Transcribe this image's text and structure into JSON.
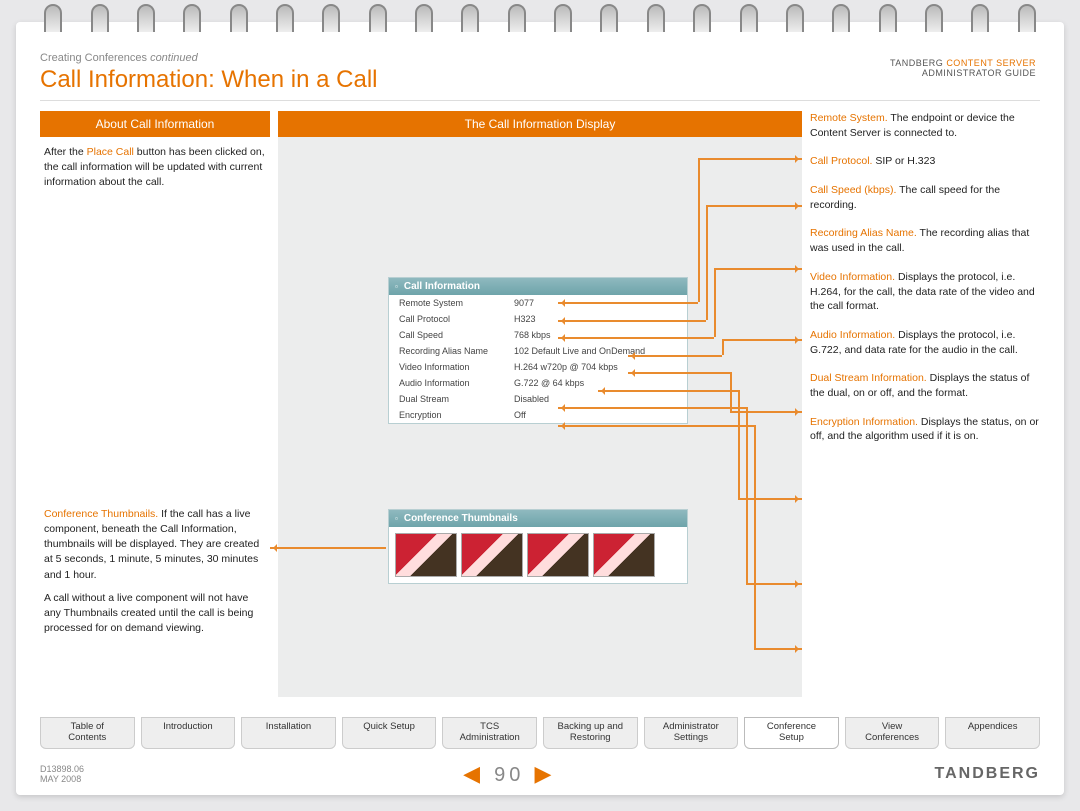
{
  "breadcrumb_prefix": "Creating Conferences ",
  "breadcrumb_suffix": "continued",
  "page_title": "Call Information: When in a Call",
  "brand_line1_a": "TANDBERG ",
  "brand_line1_b": "CONTENT SERVER",
  "brand_line2": "ADMINISTRATOR GUIDE",
  "left_header": "About Call Information",
  "mid_header": "The Call Information Display",
  "about_text_prefix": "After the ",
  "about_text_orange": "Place Call",
  "about_text_suffix": " button has been clicked on, the call information will be updated with current information about the call.",
  "conf_thumb_orange": "Conference Thumbnails.",
  "conf_thumb_text": " If the call has a live component, beneath the Call Information, thumbnails will be displayed. They are created at 5 seconds, 1 minute, 5 minutes, 30 minutes and 1 hour.",
  "conf_thumb_text2": "A call without a live component will not have any Thumbnails created until the call is being processed for on demand viewing.",
  "callouts": [
    {
      "o": "Remote System.",
      "t": " The endpoint or device the Content Server is connected to."
    },
    {
      "o": "Call Protocol.",
      "t": " SIP or H.323"
    },
    {
      "o": "Call Speed (kbps).",
      "t": " The call speed for the recording."
    },
    {
      "o": "Recording Alias Name.",
      "t": " The recording alias that was used in the call."
    },
    {
      "o": "Video Information.",
      "t": " Displays the protocol, i.e. H.264,  for the call, the data rate of the video and the call format."
    },
    {
      "o": "Audio Information.",
      "t": " Displays the protocol, i.e. G.722, and data rate for the audio in the call."
    },
    {
      "o": "Dual Stream Information.",
      "t": " Displays the status of the dual, on or off, and the format."
    },
    {
      "o": "Encryption Information.",
      "t": " Displays the status, on or off, and the algorithm used if it is on."
    }
  ],
  "panel_ci_title": "Call Information",
  "panel_ct_title": "Conference Thumbnails",
  "ci_rows": [
    {
      "l": "Remote System",
      "v": "9077"
    },
    {
      "l": "Call Protocol",
      "v": "H323"
    },
    {
      "l": "Call Speed",
      "v": "768 kbps"
    },
    {
      "l": "Recording Alias Name",
      "v": "102 Default Live and OnDemand"
    },
    {
      "l": "Video Information",
      "v": "H.264 w720p @ 704 kbps"
    },
    {
      "l": "Audio Information",
      "v": "G.722 @ 64 kbps"
    },
    {
      "l": "Dual Stream",
      "v": "Disabled"
    },
    {
      "l": "Encryption",
      "v": "Off"
    }
  ],
  "tabs": [
    "Table of\nContents",
    "Introduction",
    "Installation",
    "Quick Setup",
    "TCS\nAdministration",
    "Backing up and\nRestoring",
    "Administrator\nSettings",
    "Conference\nSetup",
    "View\nConferences",
    "Appendices"
  ],
  "active_tab_index": 7,
  "doc_id": "D13898.06",
  "doc_date": "MAY 2008",
  "page_number": "90",
  "logo_text": "TANDBERG",
  "colors": {
    "accent": "#e67300",
    "accent_light": "#e98b2e",
    "teal": "#6ea4aa",
    "page_bg": "#ffffff",
    "body_bg": "#e8e8ea",
    "diagram_bg": "#eceded"
  }
}
